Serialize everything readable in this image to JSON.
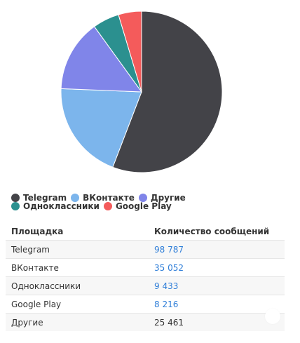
{
  "chart_data": {
    "type": "pie",
    "categories": [
      "Telegram",
      "ВКонтакте",
      "Другие",
      "Одноклассники",
      "Google Play"
    ],
    "values": [
      98787,
      35052,
      25461,
      9433,
      8216
    ],
    "colors": [
      "#434348",
      "#7cb5ec",
      "#8085e9",
      "#2b908f",
      "#f45b5b"
    ],
    "legend": [
      "Telegram",
      "ВКонтакте",
      "Другие",
      "Одноклассники",
      "Google Play"
    ],
    "legend_position": "bottom"
  },
  "table": {
    "headers": [
      "Площадка",
      "Количество сообщений"
    ],
    "rows": [
      {
        "name": "Telegram",
        "value": "98 787",
        "link": true
      },
      {
        "name": "ВКонтакте",
        "value": "35 052",
        "link": true
      },
      {
        "name": "Одноклассники",
        "value": "9 433",
        "link": true
      },
      {
        "name": "Google Play",
        "value": "8 216",
        "link": true
      },
      {
        "name": "Другие",
        "value": "25 461",
        "link": false
      }
    ]
  }
}
